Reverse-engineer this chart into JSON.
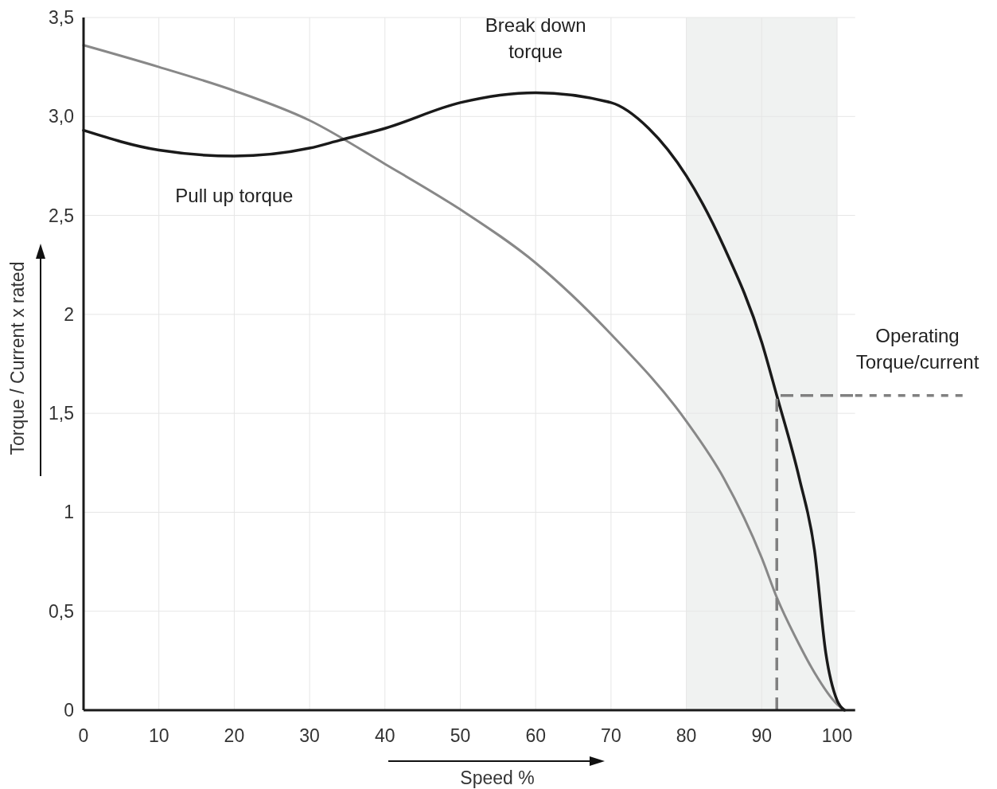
{
  "chart_data": {
    "type": "line",
    "xlabel": "Speed %",
    "ylabel": "Torque / Current x rated",
    "xlim": [
      0,
      102.4
    ],
    "xticks": [
      0,
      10,
      20,
      30,
      40,
      50,
      60,
      70,
      80,
      90,
      100
    ],
    "ylim": [
      0,
      3.5
    ],
    "yticks": [
      {
        "value": 0,
        "label": "0"
      },
      {
        "value": 0.5,
        "label": "0,5"
      },
      {
        "value": 1,
        "label": "1"
      },
      {
        "value": 1.5,
        "label": "1,5"
      },
      {
        "value": 2,
        "label": "2"
      },
      {
        "value": 2.5,
        "label": "2,5"
      },
      {
        "value": 3,
        "label": "3,0"
      },
      {
        "value": 3.5,
        "label": "3,5"
      }
    ],
    "grid": true,
    "marker": "none",
    "line_style": "solid",
    "bands": [
      {
        "axis": "x",
        "from": 80,
        "to": 100,
        "color": "#f0f2f1"
      }
    ],
    "series": [
      {
        "color": "#888888",
        "x": [
          0,
          10,
          20,
          30,
          40,
          50,
          60,
          70,
          80,
          85,
          90,
          92,
          95,
          97,
          100,
          101
        ],
        "values": [
          3.36,
          3.25,
          3.13,
          2.98,
          2.76,
          2.53,
          2.26,
          1.9,
          1.46,
          1.17,
          0.77,
          0.57,
          0.33,
          0.19,
          0.03,
          0
        ]
      },
      {
        "color": "#1a1a1a",
        "x": [
          0,
          10,
          20,
          30,
          34,
          40,
          50,
          60,
          70,
          75,
          80,
          85,
          90,
          92,
          95,
          97,
          98.5,
          100,
          101
        ],
        "values": [
          2.93,
          2.83,
          2.8,
          2.84,
          2.88,
          2.94,
          3.07,
          3.12,
          3.07,
          2.94,
          2.7,
          2.34,
          1.86,
          1.59,
          1.17,
          0.81,
          0.29,
          0.05,
          0
        ]
      },
      {
        "color": "#808080",
        "line_style": "dashed",
        "x": [
          92,
          92,
          102.4
        ],
        "values": [
          0,
          1.59,
          1.59
        ]
      }
    ],
    "annotations": [
      {
        "text": "Break down\ntorque",
        "x": 60,
        "y": 3.12
      },
      {
        "text": "Pull up torque",
        "x": 20,
        "y": 2.8
      },
      "Operating\nTorque/current"
    ]
  }
}
